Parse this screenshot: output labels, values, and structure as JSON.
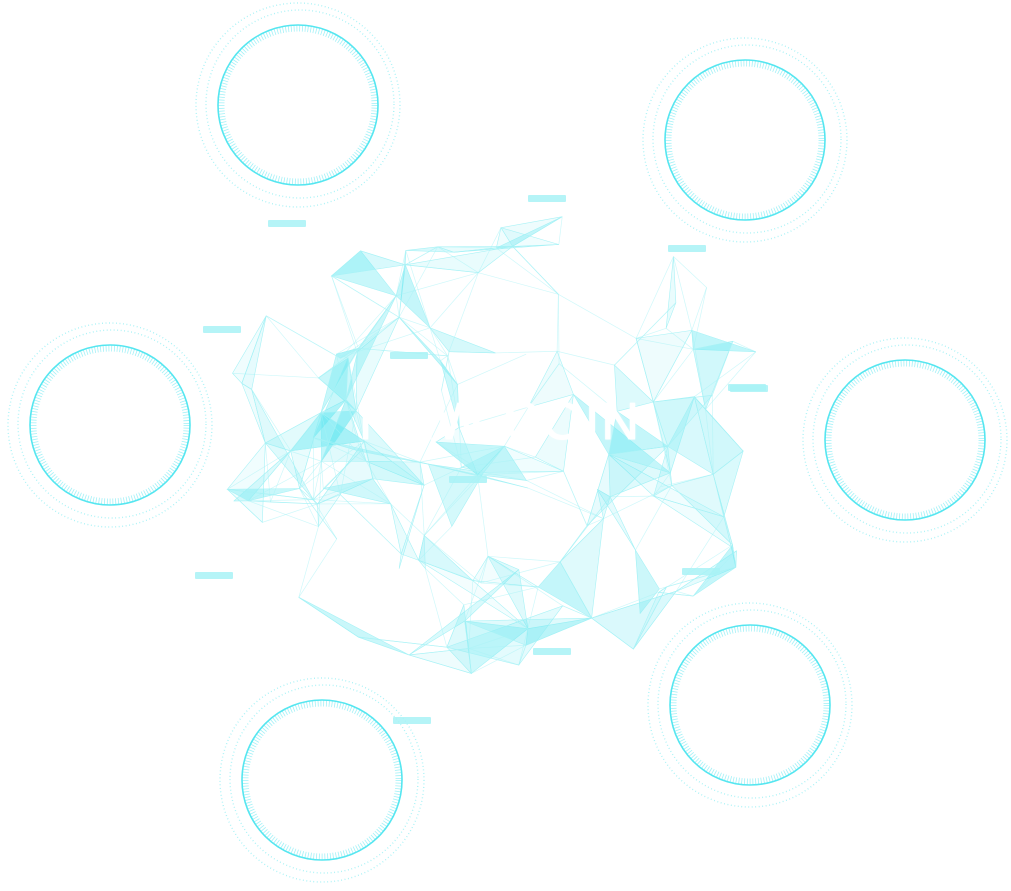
{
  "headline": "NEW COIN",
  "subline": "",
  "colors": {
    "accent": "#55e6f0",
    "accent_soft": "#a8f2f6",
    "background": "#ffffff",
    "text": "#ffffff"
  },
  "rings": [
    "top-left",
    "top-right",
    "left",
    "right",
    "bottom-left",
    "bottom-right"
  ],
  "tags": [
    "tag-1",
    "tag-2",
    "tag-3",
    "tag-4",
    "tag-5",
    "tag-6",
    "tag-7",
    "tag-8",
    "tag-9",
    "tag-10",
    "tag-11",
    "tag-12"
  ]
}
